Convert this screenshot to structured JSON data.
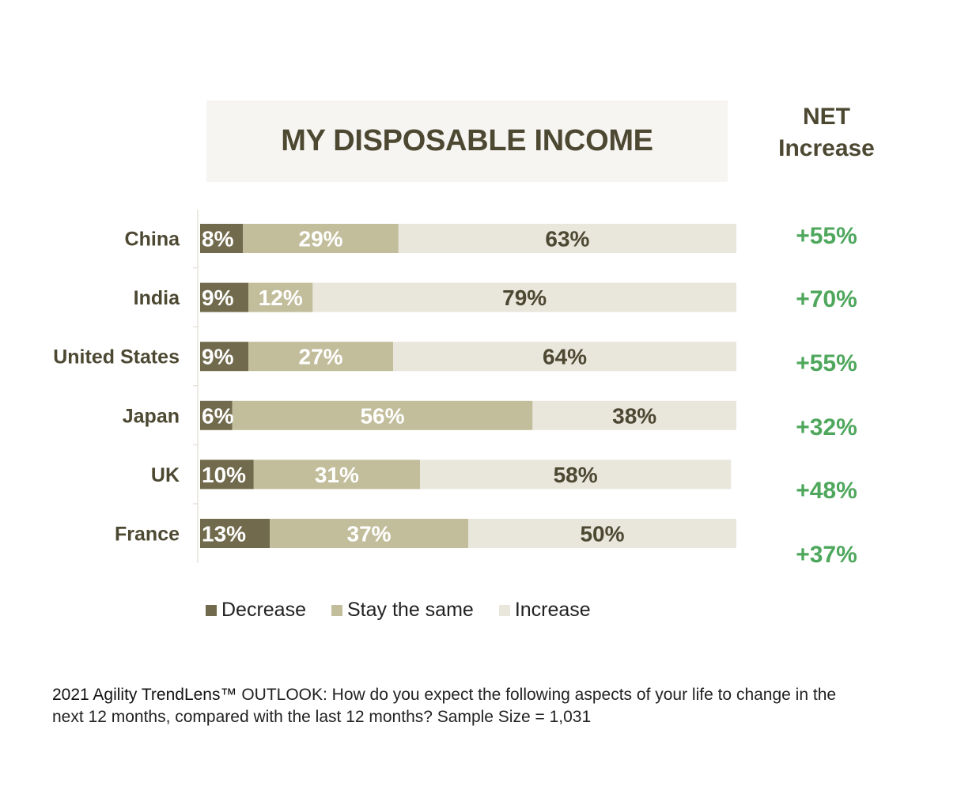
{
  "title": "MY DISPOSABLE INCOME",
  "net_header": [
    "NET",
    "Increase"
  ],
  "colors": {
    "decrease": "#716a4c",
    "stay": "#c2bd9b",
    "increase": "#e9e6dc",
    "title_text": "#4c4832",
    "net_text": "#4ea75c"
  },
  "chart_data": {
    "type": "bar",
    "orientation": "horizontal-stacked-100",
    "categories": [
      "China",
      "India",
      "United States",
      "Japan",
      "UK",
      "France"
    ],
    "series": [
      {
        "name": "Decrease",
        "values": [
          8,
          9,
          9,
          6,
          10,
          13
        ],
        "labels": [
          "8%",
          "9%",
          "9%",
          "6%",
          "10%",
          "13%"
        ]
      },
      {
        "name": "Stay the same",
        "values": [
          29,
          12,
          27,
          56,
          31,
          37
        ],
        "labels": [
          "29%",
          "12%",
          "27%",
          "56%",
          "31%",
          "37%"
        ]
      },
      {
        "name": "Increase",
        "values": [
          63,
          79,
          64,
          38,
          58,
          50
        ],
        "labels": [
          "63%",
          "79%",
          "64%",
          "38%",
          "58%",
          "50%"
        ]
      }
    ],
    "net_increase": [
      "+55%",
      "+70%",
      "+55%",
      "+32%",
      "+48%",
      "+37%"
    ],
    "xlim": [
      0,
      100
    ],
    "legend_position": "bottom"
  },
  "legend": [
    "Decrease",
    "Stay the same",
    "Increase"
  ],
  "footnote": {
    "brand": "2021 Agility TrendLens™",
    "text": " OUTLOOK: How do you expect the following aspects of your life to change in the next 12 months, compared with the last 12 months? Sample Size = 1,031"
  }
}
